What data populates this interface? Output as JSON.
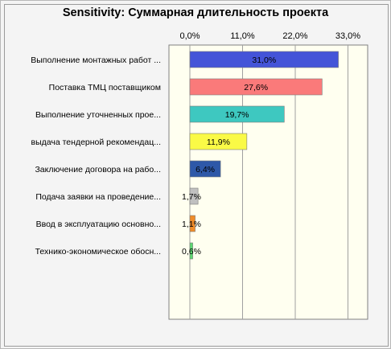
{
  "chart_data": {
    "type": "bar",
    "orientation": "horizontal",
    "title": "Sensitivity: Суммарная длительность проекта",
    "xlabel": "",
    "ylabel": "",
    "xlim": [
      0,
      36
    ],
    "tick_values": [
      0,
      11,
      22,
      33
    ],
    "tick_labels": [
      "0,0%",
      "11,0%",
      "22,0%",
      "33,0%"
    ],
    "grid": true,
    "plot_background": "#fffff0",
    "categories": [
      "Выполнение монтажных работ ...",
      "Поставка ТМЦ поставщиком",
      "Выполнение уточненных прое...",
      "выдача тендерной рекомендац...",
      "Заключение договора на рабо...",
      "Подача заявки на проведение...",
      "Ввод в эксплуатацию основно...",
      "Технико-экономическое обосн..."
    ],
    "values": [
      31.0,
      27.6,
      19.7,
      11.9,
      6.4,
      1.7,
      1.1,
      0.6
    ],
    "value_labels": [
      "31,0%",
      "27,6%",
      "19,7%",
      "11,9%",
      "6,4%",
      "1,7%",
      "1,1%",
      "0,6%"
    ],
    "colors": [
      "#4454d8",
      "#fa7a7a",
      "#3ec8c0",
      "#fafa46",
      "#2e58a8",
      "#c0c0c0",
      "#f08c28",
      "#5cd870"
    ]
  }
}
